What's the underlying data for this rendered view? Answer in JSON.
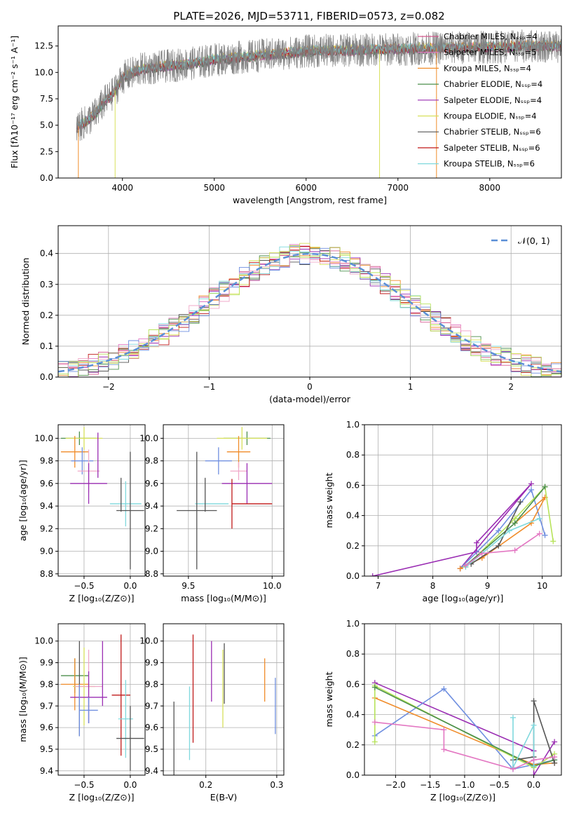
{
  "figure_title": "PLATE=2026, MJD=53711, FIBERID=0573, z=0.082",
  "colors": {
    "grid": "#b0b0b0",
    "gauss": "#5a8fd6",
    "series": [
      "#d65a8f",
      "#e377c2",
      "#f08c2a",
      "#4c8f4c",
      "#9a2db3",
      "#d7e05a",
      "#555555",
      "#c01a1a",
      "#7fd8dd",
      "#6f8fe0",
      "#f0a8c8",
      "#b7e35a"
    ]
  },
  "chart_data": [
    {
      "id": "spectrum",
      "type": "line",
      "title": "PLATE=2026, MJD=53711, FIBERID=0573, z=0.082",
      "xlabel": "wavelength [Angstrom, rest frame]",
      "ylabel": "Flux [fλ10⁻¹⁷ erg cm⁻² s⁻¹ A⁻¹]",
      "xlim": [
        3300,
        8780
      ],
      "ylim": [
        0,
        14.4
      ],
      "xticks": [
        4000,
        5000,
        6000,
        7000,
        8000
      ],
      "yticks": [
        0.0,
        2.5,
        5.0,
        7.5,
        10.0,
        12.5
      ],
      "grid": false,
      "legend_position": "top-right",
      "legend": [
        {
          "label": "Chabrier MILES, Nₛₛₚ=4",
          "color": "#d65a8f"
        },
        {
          "label": "Salpeter MILES, Nₛₛₚ=5",
          "color": "#e377c2"
        },
        {
          "label": "Kroupa MILES, Nₛₛₚ=4",
          "color": "#f08c2a"
        },
        {
          "label": "Chabrier ELODIE, Nₛₛₚ=4",
          "color": "#4c8f4c"
        },
        {
          "label": "Salpeter ELODIE, Nₛₛₚ=4",
          "color": "#9a2db3"
        },
        {
          "label": "Kroupa ELODIE, Nₛₛₚ=4",
          "color": "#d7e05a"
        },
        {
          "label": "Chabrier STELIB, Nₛₛₚ=6",
          "color": "#555555"
        },
        {
          "label": "Salpeter STELIB, Nₛₛₚ=6",
          "color": "#c01a1a"
        },
        {
          "label": "Kroupa STELIB, Nₛₛₚ=6",
          "color": "#7fd8dd"
        }
      ],
      "data_envelope": {
        "x": [
          3500,
          3600,
          3700,
          3800,
          3900,
          4000,
          4200,
          4500,
          4800,
          5000,
          5500,
          6000,
          6500,
          7000,
          7400,
          8000,
          8500,
          8780
        ],
        "y": [
          4.8,
          5.3,
          6.0,
          7.2,
          8.0,
          9.5,
          10.3,
          10.6,
          10.9,
          11.2,
          11.6,
          12.0,
          12.1,
          12.2,
          12.3,
          12.4,
          12.5,
          12.5
        ]
      }
    },
    {
      "id": "residuals",
      "type": "histogram",
      "xlabel": "(data-model)/error",
      "ylabel": "Normed distribution",
      "xlim": [
        -2.5,
        2.5
      ],
      "ylim": [
        0,
        0.49
      ],
      "xticks": [
        -2,
        -1,
        0,
        1,
        2
      ],
      "yticks": [
        0.0,
        0.1,
        0.2,
        0.3,
        0.4
      ],
      "grid": true,
      "legend_position": "top-right",
      "legend": [
        {
          "label": "𝒩(0, 1)",
          "color": "#5a8fd6"
        }
      ],
      "gauss_mean": 0,
      "gauss_sigma": 1
    },
    {
      "id": "age-vs-Z",
      "type": "errorbar",
      "xlabel": "Z [log₁₀(Z/Z⊙)]",
      "ylabel": "age  [log₁₀(age/yr)]",
      "xlim": [
        -0.78,
        0.16
      ],
      "ylim": [
        8.78,
        10.12
      ],
      "xticks": [
        -0.5,
        0.0
      ],
      "yticks": [
        8.8,
        9.0,
        9.2,
        9.4,
        9.6,
        9.8,
        10.0
      ],
      "grid": true,
      "points": [
        {
          "x": -0.55,
          "y": 10.0,
          "xerr": 0.2,
          "yerr": 0.06,
          "color": "#4c8f4c"
        },
        {
          "x": -0.5,
          "y": 10.0,
          "xerr": 0.2,
          "yerr": 0.1,
          "color": "#d7e05a"
        },
        {
          "x": -0.6,
          "y": 9.88,
          "xerr": 0.15,
          "yerr": 0.14,
          "color": "#f08c2a"
        },
        {
          "x": -0.52,
          "y": 9.8,
          "xerr": 0.12,
          "yerr": 0.12,
          "color": "#6f8fe0"
        },
        {
          "x": -0.45,
          "y": 9.71,
          "xerr": 0.12,
          "yerr": 0.19,
          "color": "#f0a8c8"
        },
        {
          "x": -0.45,
          "y": 9.6,
          "xerr": 0.2,
          "yerr": 0.18,
          "color": "#9a2db3"
        },
        {
          "x": -0.05,
          "y": 9.42,
          "xerr": 0.17,
          "yerr": 0.2,
          "color": "#7fd8dd"
        },
        {
          "x": 0.0,
          "y": 9.36,
          "xerr": 0.15,
          "yerr": 0.52,
          "color": "#555555"
        },
        {
          "x": -0.1,
          "y": 9.5,
          "xerr": 0.0,
          "yerr": 0.15,
          "color": "#555555"
        },
        {
          "x": -0.35,
          "y": 9.85,
          "xerr": 0.0,
          "yerr": 0.2,
          "color": "#9a2db3"
        }
      ]
    },
    {
      "id": "age-vs-mass",
      "type": "errorbar",
      "xlabel": "mass [log₁₀(M/M⊙)]",
      "ylabel": "",
      "xlim": [
        9.35,
        10.07
      ],
      "ylim": [
        8.78,
        10.12
      ],
      "xticks": [
        9.5,
        10.0
      ],
      "yticks": [
        8.8,
        9.0,
        9.2,
        9.4,
        9.6,
        9.8,
        10.0
      ],
      "grid": true,
      "points": [
        {
          "x": 9.85,
          "y": 10.0,
          "xerr": 0.14,
          "yerr": 0.06,
          "color": "#4c8f4c"
        },
        {
          "x": 9.82,
          "y": 10.0,
          "xerr": 0.15,
          "yerr": 0.1,
          "color": "#d7e05a"
        },
        {
          "x": 9.8,
          "y": 9.88,
          "xerr": 0.07,
          "yerr": 0.14,
          "color": "#f08c2a"
        },
        {
          "x": 9.68,
          "y": 9.8,
          "xerr": 0.08,
          "yerr": 0.12,
          "color": "#6f8fe0"
        },
        {
          "x": 9.8,
          "y": 9.71,
          "xerr": 0.05,
          "yerr": 0.08,
          "color": "#f0a8c8"
        },
        {
          "x": 9.85,
          "y": 9.6,
          "xerr": 0.15,
          "yerr": 0.18,
          "color": "#9a2db3"
        },
        {
          "x": 9.64,
          "y": 9.42,
          "xerr": 0.1,
          "yerr": 0.0,
          "color": "#7fd8dd"
        },
        {
          "x": 9.55,
          "y": 9.36,
          "xerr": 0.12,
          "yerr": 0.52,
          "color": "#555555"
        },
        {
          "x": 9.76,
          "y": 9.42,
          "xerr": 0.0,
          "yerr": 0.22,
          "color": "#c01a1a"
        },
        {
          "x": 9.88,
          "y": 9.42,
          "xerr": 0.12,
          "yerr": 0.0,
          "color": "#c01a1a"
        },
        {
          "x": 9.6,
          "y": 9.5,
          "xerr": 0.0,
          "yerr": 0.15,
          "color": "#555555"
        }
      ]
    },
    {
      "id": "massweight-vs-age",
      "type": "line",
      "xlabel": "age  [log₁₀(age/yr)]",
      "ylabel": "mass weight",
      "xlim": [
        6.75,
        10.35
      ],
      "ylim": [
        0,
        1.0
      ],
      "xticks": [
        7,
        8,
        9,
        10
      ],
      "yticks": [
        0.0,
        0.2,
        0.4,
        0.6,
        0.8,
        1.0
      ],
      "grid": true,
      "series": [
        {
          "color": "#9a2db3",
          "points": [
            [
              6.9,
              0.0
            ],
            [
              8.8,
              0.16
            ],
            [
              8.8,
              0.22
            ],
            [
              9.8,
              0.61
            ],
            [
              8.5,
              0.05
            ]
          ]
        },
        {
          "color": "#6f8fe0",
          "points": [
            [
              8.5,
              0.05
            ],
            [
              9.2,
              0.3
            ],
            [
              9.8,
              0.57
            ],
            [
              10.05,
              0.27
            ]
          ]
        },
        {
          "color": "#f08c2a",
          "points": [
            [
              8.5,
              0.05
            ],
            [
              8.9,
              0.12
            ],
            [
              9.8,
              0.35
            ],
            [
              10.05,
              0.52
            ],
            [
              9.5,
              0.35
            ]
          ]
        },
        {
          "color": "#b7e35a",
          "points": [
            [
              8.6,
              0.06
            ],
            [
              9.5,
              0.38
            ],
            [
              10.05,
              0.59
            ],
            [
              10.2,
              0.23
            ]
          ]
        },
        {
          "color": "#4c8f4c",
          "points": [
            [
              8.6,
              0.07
            ],
            [
              9.5,
              0.35
            ],
            [
              10.05,
              0.59
            ]
          ]
        },
        {
          "color": "#555555",
          "points": [
            [
              8.7,
              0.08
            ],
            [
              9.2,
              0.2
            ],
            [
              9.6,
              0.49
            ]
          ]
        },
        {
          "color": "#7fd8dd",
          "points": [
            [
              8.6,
              0.06
            ],
            [
              9.4,
              0.3
            ],
            [
              9.95,
              0.38
            ]
          ]
        },
        {
          "color": "#e377c2",
          "points": [
            [
              8.6,
              0.07
            ],
            [
              8.9,
              0.15
            ],
            [
              9.5,
              0.17
            ],
            [
              9.95,
              0.28
            ]
          ]
        }
      ]
    },
    {
      "id": "mass-vs-Z",
      "type": "errorbar",
      "xlabel": "Z [log₁₀(Z/Z⊙)]",
      "ylabel": "mass [log₁₀(M/M⊙)]",
      "xlim": [
        -0.78,
        0.16
      ],
      "ylim": [
        9.38,
        10.08
      ],
      "xticks": [
        -0.5,
        0.0
      ],
      "yticks": [
        9.4,
        9.5,
        9.6,
        9.7,
        9.8,
        9.9,
        10.0
      ],
      "grid": true,
      "points": [
        {
          "x": -0.6,
          "y": 9.84,
          "xerr": 0.15,
          "yerr": 0.08,
          "color": "#4c8f4c"
        },
        {
          "x": -0.6,
          "y": 9.8,
          "xerr": 0.15,
          "yerr": 0.12,
          "color": "#f08c2a"
        },
        {
          "x": -0.5,
          "y": 9.79,
          "xerr": 0.12,
          "yerr": 0.18,
          "color": "#d7e05a"
        },
        {
          "x": -0.45,
          "y": 9.79,
          "xerr": 0.15,
          "yerr": 0.17,
          "color": "#f0a8c8"
        },
        {
          "x": -0.45,
          "y": 9.74,
          "xerr": 0.2,
          "yerr": 0.12,
          "color": "#9a2db3"
        },
        {
          "x": -0.45,
          "y": 9.68,
          "xerr": 0.1,
          "yerr": 0.06,
          "color": "#6f8fe0"
        },
        {
          "x": -0.55,
          "y": 9.78,
          "xerr": 0.0,
          "yerr": 0.22,
          "color": "#555555"
        },
        {
          "x": -0.1,
          "y": 9.75,
          "xerr": 0.1,
          "yerr": 0.28,
          "color": "#c01a1a"
        },
        {
          "x": -0.05,
          "y": 9.64,
          "xerr": 0.08,
          "yerr": 0.18,
          "color": "#7fd8dd"
        },
        {
          "x": 0.0,
          "y": 9.55,
          "xerr": 0.15,
          "yerr": 0.15,
          "color": "#555555"
        },
        {
          "x": -0.55,
          "y": 9.68,
          "xerr": 0.0,
          "yerr": 0.12,
          "color": "#6f8fe0"
        },
        {
          "x": -0.3,
          "y": 9.85,
          "xerr": 0.0,
          "yerr": 0.15,
          "color": "#9a2db3"
        }
      ]
    },
    {
      "id": "mass-vs-EBV",
      "type": "errorbar",
      "xlabel": "E(B-V)",
      "ylabel": "",
      "xlim": [
        0.14,
        0.31
      ],
      "ylim": [
        9.38,
        10.08
      ],
      "xticks": [
        0.2,
        0.3
      ],
      "yticks": [
        9.4,
        9.5,
        9.6,
        9.7,
        9.8,
        9.9,
        10.0
      ],
      "grid": true,
      "points": [
        {
          "x": 0.155,
          "y": 9.55,
          "xerr": 0,
          "yerr": 0.17,
          "color": "#555555"
        },
        {
          "x": 0.177,
          "y": 9.62,
          "xerr": 0,
          "yerr": 0.17,
          "color": "#7fd8dd"
        },
        {
          "x": 0.182,
          "y": 9.78,
          "xerr": 0,
          "yerr": 0.25,
          "color": "#c01a1a"
        },
        {
          "x": 0.208,
          "y": 9.86,
          "xerr": 0,
          "yerr": 0.14,
          "color": "#9a2db3"
        },
        {
          "x": 0.224,
          "y": 9.78,
          "xerr": 0,
          "yerr": 0.18,
          "color": "#d7e05a"
        },
        {
          "x": 0.226,
          "y": 9.85,
          "xerr": 0,
          "yerr": 0.14,
          "color": "#555555"
        },
        {
          "x": 0.283,
          "y": 9.82,
          "xerr": 0,
          "yerr": 0.1,
          "color": "#f08c2a"
        },
        {
          "x": 0.298,
          "y": 9.7,
          "xerr": 0,
          "yerr": 0.13,
          "color": "#6f8fe0"
        }
      ]
    },
    {
      "id": "massweight-vs-Z",
      "type": "line",
      "xlabel": "Z [log₁₀(Z/Z⊙)]",
      "ylabel": "mass weight",
      "xlim": [
        -2.45,
        0.4
      ],
      "ylim": [
        0,
        1.0
      ],
      "xticks": [
        -2.0,
        -1.5,
        -1.0,
        -0.5,
        0.0
      ],
      "yticks": [
        0.0,
        0.2,
        0.4,
        0.6,
        0.8,
        1.0
      ],
      "grid": true,
      "series": [
        {
          "color": "#9a2db3",
          "points": [
            [
              -2.3,
              0.61
            ],
            [
              0.0,
              0.16
            ],
            [
              0.0,
              0.0
            ],
            [
              0.3,
              0.22
            ]
          ]
        },
        {
          "color": "#6f8fe0",
          "points": [
            [
              -2.3,
              0.26
            ],
            [
              -1.3,
              0.57
            ],
            [
              -0.3,
              0.04
            ],
            [
              0.3,
              0.1
            ]
          ]
        },
        {
          "color": "#f08c2a",
          "points": [
            [
              -2.3,
              0.51
            ],
            [
              0.0,
              0.07
            ],
            [
              0.3,
              0.08
            ]
          ]
        },
        {
          "color": "#b7e35a",
          "points": [
            [
              -2.3,
              0.22
            ],
            [
              -2.3,
              0.59
            ],
            [
              0.0,
              0.05
            ],
            [
              0.3,
              0.14
            ]
          ]
        },
        {
          "color": "#4c8f4c",
          "points": [
            [
              -2.3,
              0.58
            ],
            [
              0.0,
              0.06
            ],
            [
              0.3,
              0.1
            ]
          ]
        },
        {
          "color": "#555555",
          "points": [
            [
              -0.3,
              0.1
            ],
            [
              0.0,
              0.12
            ],
            [
              0.0,
              0.49
            ],
            [
              0.3,
              0.08
            ]
          ]
        },
        {
          "color": "#7fd8dd",
          "points": [
            [
              -0.3,
              0.38
            ],
            [
              -0.3,
              0.05
            ],
            [
              0.0,
              0.33
            ],
            [
              0.0,
              0.06
            ]
          ]
        },
        {
          "color": "#e377c2",
          "points": [
            [
              -2.3,
              0.35
            ],
            [
              -1.3,
              0.3
            ],
            [
              -1.3,
              0.17
            ],
            [
              -0.3,
              0.04
            ],
            [
              0.0,
              0.1
            ],
            [
              0.3,
              0.12
            ]
          ]
        }
      ]
    }
  ]
}
